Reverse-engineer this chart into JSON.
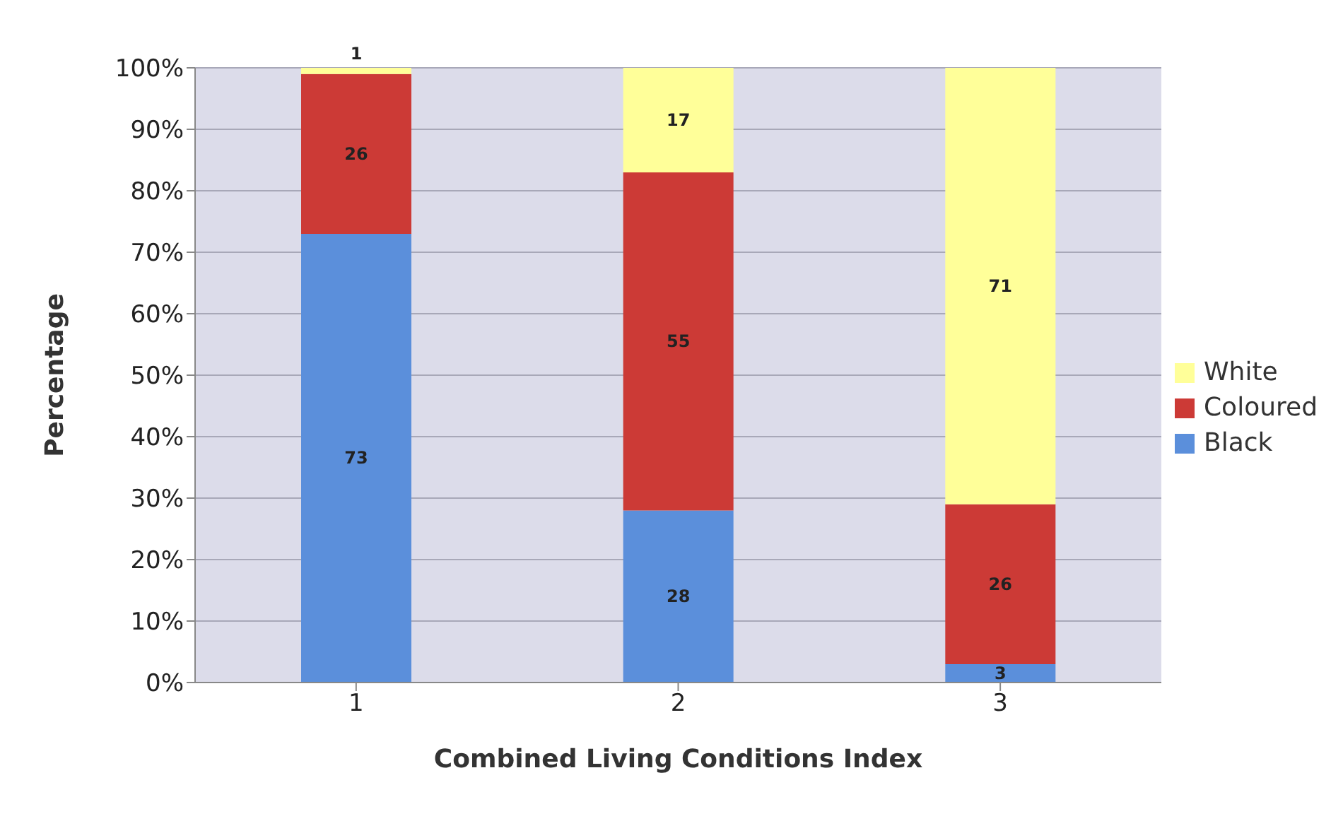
{
  "chart_data": {
    "type": "bar",
    "stacked": true,
    "xlabel": "Combined Living Conditions Index",
    "ylabel": "Percentage",
    "categories": [
      "1",
      "2",
      "3"
    ],
    "series": [
      {
        "name": "Black",
        "color": "#5b8fdb",
        "values": [
          73,
          28,
          3
        ]
      },
      {
        "name": "Coloured",
        "color": "#cc3a36",
        "values": [
          26,
          55,
          26
        ]
      },
      {
        "name": "White",
        "color": "#ffff99",
        "values": [
          1,
          17,
          71
        ]
      }
    ],
    "ylim": [
      0,
      100
    ],
    "yticks": [
      {
        "value": 0,
        "label": "0%"
      },
      {
        "value": 10,
        "label": "10%"
      },
      {
        "value": 20,
        "label": "20%"
      },
      {
        "value": 30,
        "label": "30%"
      },
      {
        "value": 40,
        "label": "40%"
      },
      {
        "value": 50,
        "label": "50%"
      },
      {
        "value": 60,
        "label": "60%"
      },
      {
        "value": 70,
        "label": "70%"
      },
      {
        "value": 80,
        "label": "80%"
      },
      {
        "value": 90,
        "label": "90%"
      },
      {
        "value": 100,
        "label": "100%"
      }
    ],
    "grid": "y",
    "legend": "right",
    "data_labels": true
  }
}
